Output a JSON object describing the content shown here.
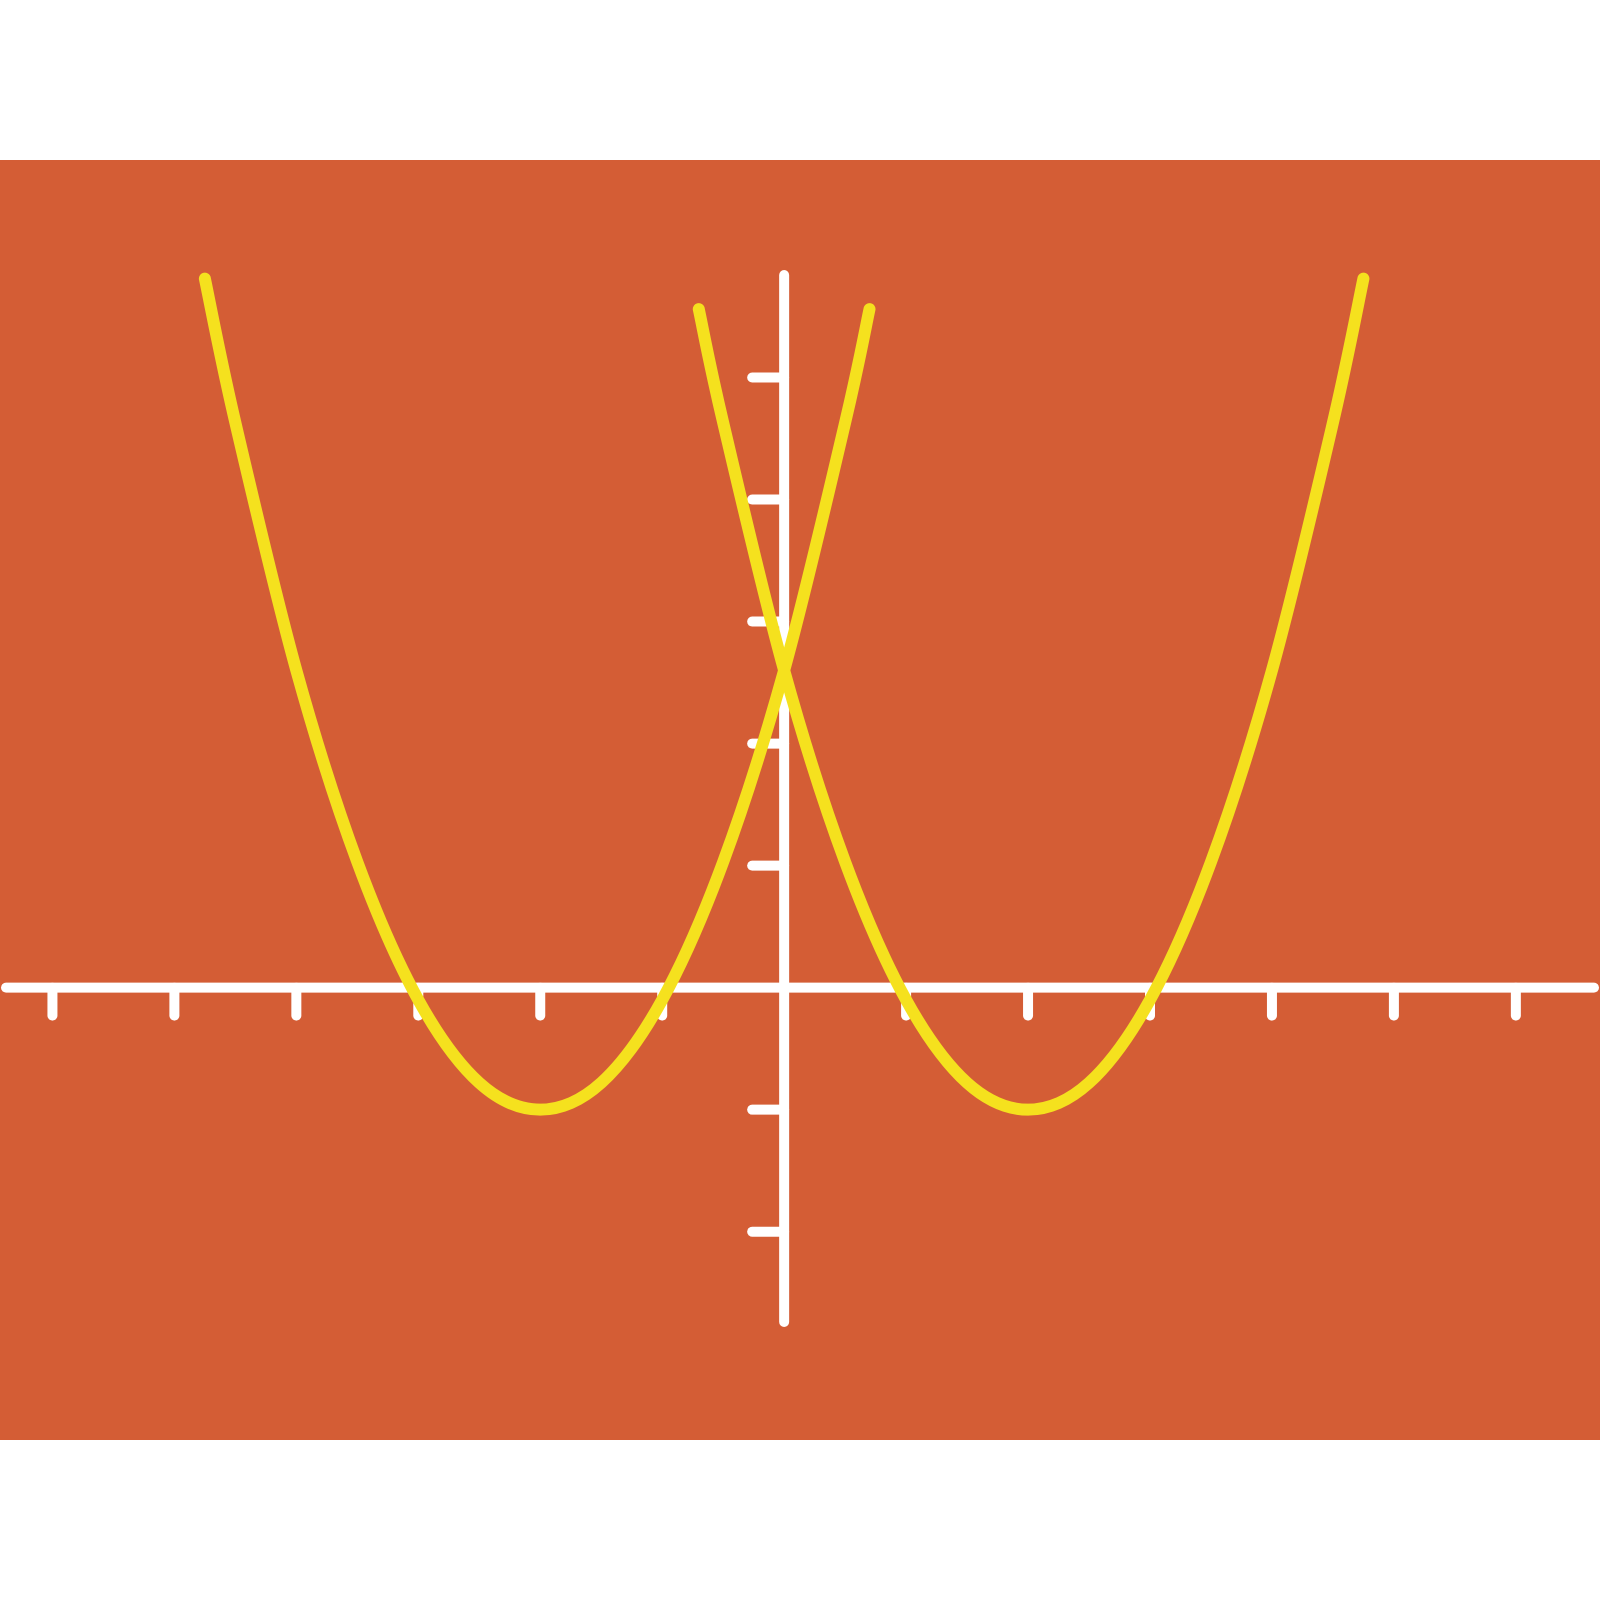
{
  "chart_data": {
    "type": "line",
    "background": "#d45d35",
    "axis_color": "#ffffff",
    "xlim": [
      -6.43,
      6.69
    ],
    "ylim": [
      -2.74,
      5.84
    ],
    "xticks": [
      -6,
      -5,
      -4,
      -3,
      -2,
      -1,
      1,
      2,
      3,
      4,
      5,
      6
    ],
    "yticks": [
      -2,
      -1,
      1,
      2,
      3,
      4,
      5
    ],
    "series": [
      {
        "color": "#f5e11e",
        "x": [
          -4.75,
          -4.5,
          -4,
          -3.5,
          -3,
          -2.5,
          -2,
          -1.5,
          -1,
          -0.5,
          0,
          0.5,
          0.7
        ],
        "values": [
          5.81,
          4.63,
          2.6,
          1.03,
          -0.1,
          -0.78,
          -1,
          -0.78,
          -0.1,
          1.03,
          2.6,
          4.63,
          5.56
        ]
      },
      {
        "color": "#f5e11e",
        "x": [
          -0.7,
          -0.5,
          0,
          0.5,
          1,
          1.5,
          2,
          2.5,
          3,
          3.5,
          4,
          4.5,
          4.75
        ],
        "values": [
          5.56,
          4.63,
          2.6,
          1.03,
          -0.1,
          -0.78,
          -1,
          -0.78,
          -0.1,
          1.03,
          2.6,
          4.63,
          5.81
        ]
      }
    ]
  }
}
